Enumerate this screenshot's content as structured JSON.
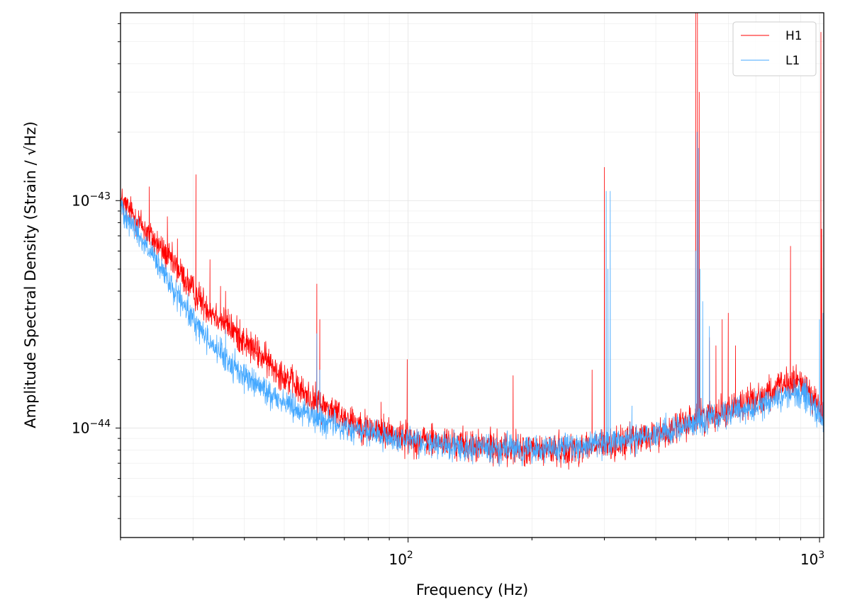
{
  "chart_data": {
    "type": "line",
    "title": "",
    "xlabel": "Frequency (Hz)",
    "ylabel": "Amplitude Spectral Density (Strain / √Hz)",
    "xscale": "log",
    "yscale": "log",
    "xlim": [
      20,
      1024
    ],
    "ylim": [
      3.3e-45,
      6.7e-43
    ],
    "grid": true,
    "legend_position": "top-right",
    "x_ticks": [
      {
        "value": 100,
        "base": "10",
        "exp": "2"
      },
      {
        "value": 1000,
        "base": "10",
        "exp": "3"
      }
    ],
    "y_ticks": [
      {
        "value": 1e-44,
        "base": "10",
        "exp": "−44"
      },
      {
        "value": 1e-43,
        "base": "10",
        "exp": "−43"
      }
    ],
    "series": [
      {
        "name": "H1",
        "color": "#ff0000",
        "baseline": [
          [
            20,
            1e-43
          ],
          [
            22,
            8.2e-44
          ],
          [
            25,
            6.2e-44
          ],
          [
            28,
            4.8e-44
          ],
          [
            30,
            4e-44
          ],
          [
            33,
            3.3e-44
          ],
          [
            36,
            2.9e-44
          ],
          [
            40,
            2.4e-44
          ],
          [
            45,
            2e-44
          ],
          [
            50,
            1.7e-44
          ],
          [
            55,
            1.45e-44
          ],
          [
            60,
            1.3e-44
          ],
          [
            70,
            1.12e-44
          ],
          [
            80,
            1e-44
          ],
          [
            90,
            9.5e-45
          ],
          [
            100,
            9e-45
          ],
          [
            120,
            8.6e-45
          ],
          [
            150,
            8.3e-45
          ],
          [
            200,
            8e-45
          ],
          [
            250,
            8.1e-45
          ],
          [
            300,
            8.4e-45
          ],
          [
            350,
            8.8e-45
          ],
          [
            400,
            9.3e-45
          ],
          [
            450,
            1e-44
          ],
          [
            500,
            1.1e-44
          ],
          [
            600,
            1.2e-44
          ],
          [
            700,
            1.35e-44
          ],
          [
            800,
            1.5e-44
          ],
          [
            880,
            1.6e-44
          ],
          [
            940,
            1.5e-44
          ],
          [
            1000,
            1.2e-44
          ],
          [
            1024,
            1.1e-44
          ]
        ],
        "peaks": [
          [
            23.5,
            1.15e-43
          ],
          [
            26,
            8.5e-44
          ],
          [
            27.5,
            6.8e-44
          ],
          [
            30.5,
            1.3e-43
          ],
          [
            33,
            5.5e-44
          ],
          [
            35,
            4.2e-44
          ],
          [
            36,
            4e-44
          ],
          [
            39,
            3e-44
          ],
          [
            45,
            2e-44
          ],
          [
            46,
            1.8e-44
          ],
          [
            60,
            4.3e-44
          ],
          [
            61,
            3e-44
          ],
          [
            86,
            1.3e-44
          ],
          [
            99.5,
            2e-44
          ],
          [
            180,
            1.7e-44
          ],
          [
            280,
            1.8e-44
          ],
          [
            300,
            1.4e-43
          ],
          [
            303,
            6.7e-44
          ],
          [
            500,
            6.7e-43
          ],
          [
            505,
            6.7e-43
          ],
          [
            510,
            3e-43
          ],
          [
            540,
            2.5e-44
          ],
          [
            560,
            2.3e-44
          ],
          [
            580,
            3e-44
          ],
          [
            600,
            3.2e-44
          ],
          [
            625,
            2.3e-44
          ],
          [
            850,
            6.3e-44
          ],
          [
            1008,
            5.5e-43
          ],
          [
            1012,
            7.5e-44
          ]
        ],
        "noise": 0.07
      },
      {
        "name": "L1",
        "color": "#44a8ff",
        "baseline": [
          [
            20,
            9.5e-44
          ],
          [
            22,
            7.2e-44
          ],
          [
            25,
            5e-44
          ],
          [
            28,
            3.6e-44
          ],
          [
            30,
            3e-44
          ],
          [
            33,
            2.4e-44
          ],
          [
            36,
            2e-44
          ],
          [
            40,
            1.7e-44
          ],
          [
            45,
            1.45e-44
          ],
          [
            50,
            1.3e-44
          ],
          [
            55,
            1.2e-44
          ],
          [
            60,
            1.1e-44
          ],
          [
            70,
            1e-44
          ],
          [
            80,
            9.5e-45
          ],
          [
            90,
            9e-45
          ],
          [
            100,
            8.7e-45
          ],
          [
            120,
            8.4e-45
          ],
          [
            150,
            8.2e-45
          ],
          [
            200,
            8e-45
          ],
          [
            250,
            8.2e-45
          ],
          [
            300,
            8.6e-45
          ],
          [
            350,
            9e-45
          ],
          [
            400,
            9.5e-45
          ],
          [
            450,
            1e-44
          ],
          [
            500,
            1.05e-44
          ],
          [
            600,
            1.15e-44
          ],
          [
            700,
            1.25e-44
          ],
          [
            800,
            1.35e-44
          ],
          [
            880,
            1.45e-44
          ],
          [
            940,
            1.35e-44
          ],
          [
            1000,
            1.15e-44
          ],
          [
            1024,
            1.05e-44
          ]
        ],
        "peaks": [
          [
            36,
            2.7e-44
          ],
          [
            40,
            1.9e-44
          ],
          [
            60,
            2.6e-44
          ],
          [
            61,
            1.8e-44
          ],
          [
            303,
            1.1e-43
          ],
          [
            306,
            5e-44
          ],
          [
            310,
            1.1e-43
          ],
          [
            350,
            1.25e-44
          ],
          [
            500,
            6e-44
          ],
          [
            504,
            2e-43
          ],
          [
            508,
            1.7e-43
          ],
          [
            512,
            5e-44
          ],
          [
            520,
            3.6e-44
          ],
          [
            540,
            2.8e-44
          ],
          [
            1000,
            3e-44
          ],
          [
            1020,
            3.2e-44
          ]
        ],
        "noise": 0.06
      }
    ]
  }
}
